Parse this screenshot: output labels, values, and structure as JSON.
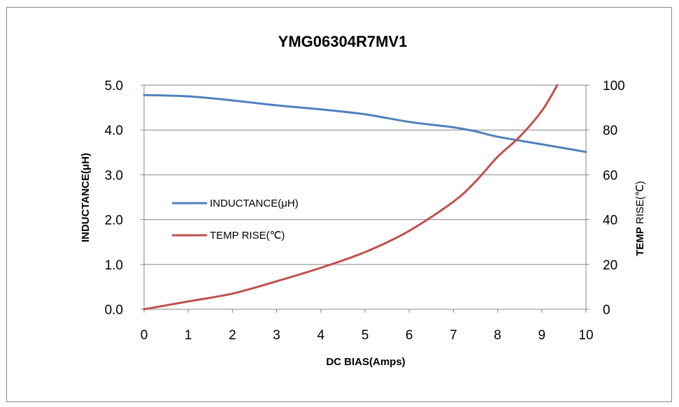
{
  "chart_data": {
    "type": "line",
    "title": "YMG06304R7MV1",
    "xlabel": "DC BIAS(Amps)",
    "ylabel_left": "INDUCTANCE(μH)",
    "ylabel_right_bold": "TEMP",
    "ylabel_right_rest": " RISE(℃)",
    "xlim": [
      0,
      10
    ],
    "ylim_left": [
      0,
      5
    ],
    "ylim_right": [
      0,
      100
    ],
    "x_ticks": [
      "0",
      "1",
      "2",
      "3",
      "4",
      "5",
      "6",
      "7",
      "8",
      "9",
      "10"
    ],
    "y_left_ticks": [
      "0.0",
      "1.0",
      "2.0",
      "3.0",
      "4.0",
      "5.0"
    ],
    "y_right_ticks": [
      "0",
      "20",
      "40",
      "60",
      "80",
      "100"
    ],
    "grid": true,
    "legend_position": "left-middle",
    "series": [
      {
        "name": "INDUCTANCE(μH)",
        "axis": "left",
        "color": "#4f81bd",
        "x": [
          0,
          1,
          2,
          3,
          4,
          5,
          6,
          7,
          7.5,
          8,
          9,
          10
        ],
        "y": [
          4.78,
          4.75,
          4.66,
          4.55,
          4.46,
          4.35,
          4.18,
          4.06,
          3.97,
          3.85,
          3.68,
          3.51
        ]
      },
      {
        "name": "TEMP RISE(℃)",
        "axis": "right",
        "color": "#c0504d",
        "x": [
          0,
          1,
          2,
          3,
          4,
          5,
          6,
          7,
          7.5,
          8,
          8.5,
          9,
          9.35
        ],
        "y": [
          0,
          3.5,
          7,
          12.5,
          18.5,
          25.5,
          35,
          48,
          57,
          68,
          77,
          88.5,
          100
        ]
      }
    ]
  }
}
